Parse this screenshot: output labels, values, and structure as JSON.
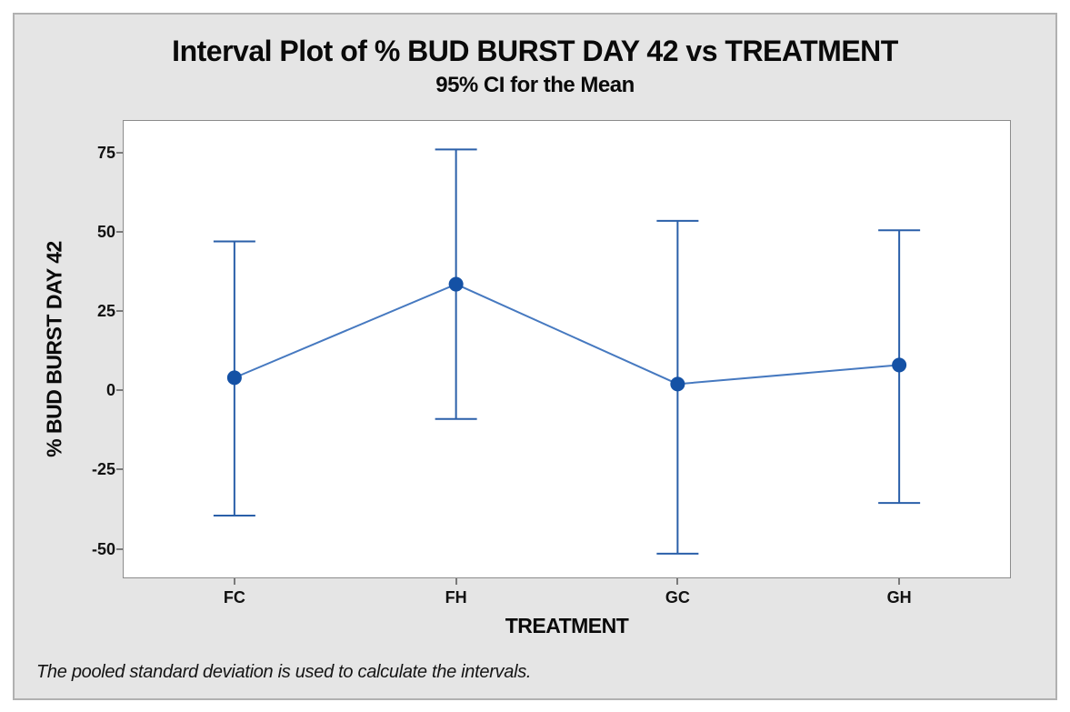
{
  "figure": {
    "title": "Interval Plot of % BUD BURST DAY 42 vs TREATMENT",
    "subtitle": "95% CI for the Mean",
    "footnote": "The pooled standard deviation is used to calculate the intervals."
  },
  "chart_data": {
    "type": "line",
    "subtype": "interval-plot-mean-with-95ci-errorbars",
    "title": "Interval Plot of % BUD BURST DAY 42 vs TREATMENT",
    "subtitle": "95% CI for the Mean",
    "xlabel": "TREATMENT",
    "ylabel": "% BUD BURST DAY 42",
    "categories": [
      "FC",
      "FH",
      "GC",
      "GH"
    ],
    "series": [
      {
        "name": "Mean",
        "values": [
          4,
          33.5,
          2,
          8
        ]
      },
      {
        "name": "95% CI lower",
        "values": [
          -39.5,
          -9,
          -51.5,
          -35.5
        ]
      },
      {
        "name": "95% CI upper",
        "values": [
          47,
          76,
          53.5,
          50.5
        ]
      }
    ],
    "ylim": [
      -59,
      85
    ],
    "yticks": [
      75,
      50,
      25,
      0,
      -25,
      -50
    ],
    "grid": false,
    "legend": "none",
    "colors": {
      "interval_line": "#2a5fa9",
      "connector_line": "#4679c0",
      "marker": "#1451a5",
      "plot_bg": "#ffffff",
      "figure_bg": "#e5e5e5",
      "figure_border": "#b1b1b1",
      "plot_border": "#8c8c8c",
      "tick": "#7a7a7a",
      "text": "#0a0a0a"
    }
  }
}
